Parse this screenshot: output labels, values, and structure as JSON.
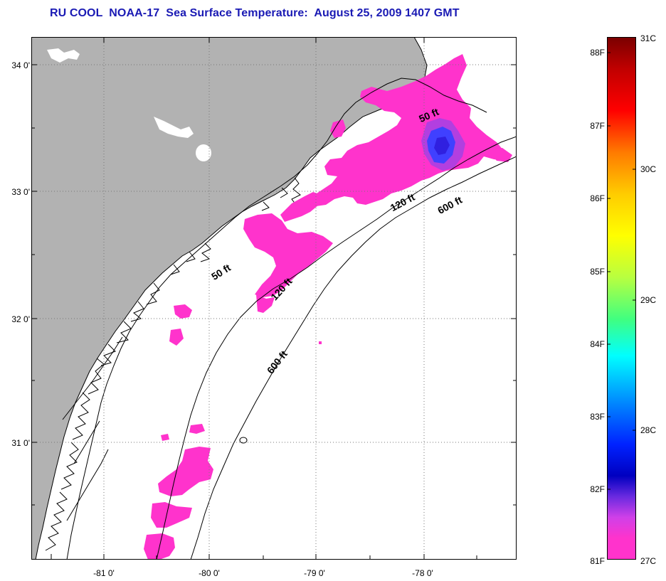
{
  "title": "RU COOL  NOAA-17  Sea Surface Temperature:  August 25, 2009 1407 GMT",
  "map": {
    "latitude_labels": [
      "34 0'",
      "33 0'",
      "32 0'",
      "31 0'"
    ],
    "longitude_labels": [
      "-81 0'",
      "-80 0'",
      "-79 0'",
      "-78 0'"
    ],
    "depth_contour_labels": {
      "north_50": "50 ft",
      "north_120": "120 ft",
      "north_600": "600 ft",
      "south_50": "50 ft",
      "south_120": "120 ft",
      "south_600": "600 ft"
    },
    "colors": {
      "land": "#b2b2b2",
      "ocean": "#ffffff",
      "sst_27c": "#ff33cc",
      "sst_27_5c": "#4040ff",
      "grid": "#777777"
    }
  },
  "colorbar": {
    "fahrenheit_labels": [
      "88F",
      "87F",
      "86F",
      "85F",
      "84F",
      "83F",
      "82F",
      "81F"
    ],
    "celsius_labels": [
      "31C",
      "30C",
      "29C",
      "28C",
      "27C"
    ]
  }
}
